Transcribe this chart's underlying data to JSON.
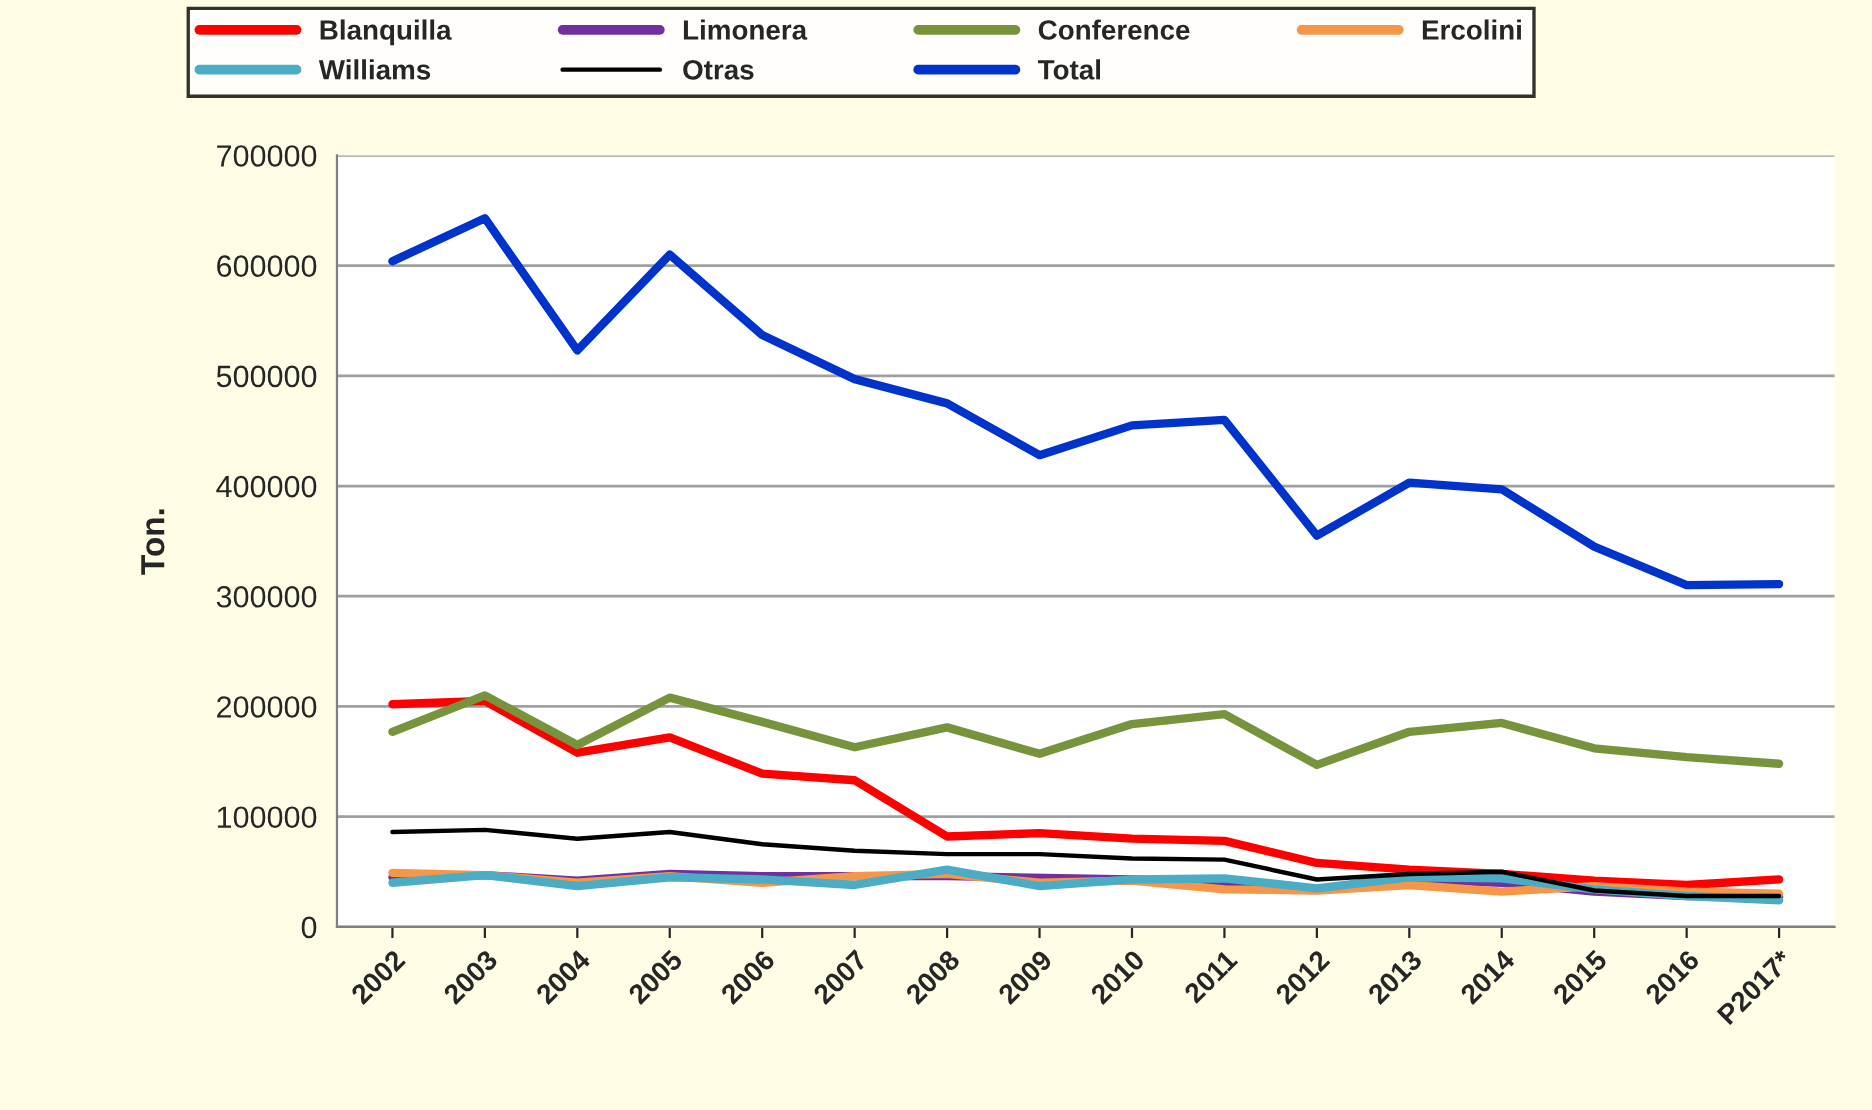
{
  "chart_data": {
    "type": "line",
    "ylabel": "Ton.",
    "categories": [
      "2002",
      "2003",
      "2004",
      "2005",
      "2006",
      "2007",
      "2008",
      "2009",
      "2010",
      "2011",
      "2012",
      "2013",
      "2014",
      "2015",
      "2016",
      "P2017*"
    ],
    "ylim": [
      0,
      700000
    ],
    "yticks": [
      0,
      100000,
      200000,
      300000,
      400000,
      500000,
      600000,
      700000
    ],
    "grid": "y",
    "legend": "top",
    "marker": "none",
    "line_style": "solid",
    "series": [
      {
        "name": "Blanquilla",
        "color": "#ff0000",
        "values": [
          202000,
          205000,
          158000,
          172000,
          139000,
          133000,
          82000,
          85000,
          80000,
          78000,
          58000,
          52000,
          48000,
          42000,
          38000,
          43000
        ]
      },
      {
        "name": "Limonera",
        "color": "#7030a0",
        "values": [
          45000,
          47000,
          42000,
          48000,
          46000,
          46000,
          46000,
          null,
          43000,
          40000,
          34000,
          43000,
          40000,
          32000,
          28000,
          27000
        ]
      },
      {
        "name": "Conference",
        "color": "#77933c",
        "values": [
          177000,
          210000,
          165000,
          208000,
          186000,
          163000,
          181000,
          157000,
          184000,
          193000,
          147000,
          177000,
          185000,
          162000,
          154000,
          148000
        ]
      },
      {
        "name": "Ercolini",
        "color": "#f79646",
        "values": [
          49000,
          47000,
          40000,
          46000,
          40000,
          46000,
          48000,
          40000,
          42000,
          34000,
          33000,
          38000,
          32000,
          37000,
          32000,
          30000
        ]
      },
      {
        "name": "Williams",
        "color": "#4bacc6",
        "values": [
          40000,
          47000,
          37000,
          45000,
          43000,
          38000,
          52000,
          37000,
          43000,
          44000,
          35000,
          45000,
          44000,
          34000,
          28000,
          24000
        ]
      },
      {
        "name": "Otras",
        "color": "#000000",
        "values": [
          86000,
          88000,
          80000,
          86000,
          75000,
          69000,
          66000,
          66000,
          62000,
          61000,
          43000,
          48000,
          50000,
          33000,
          28000,
          28000
        ]
      },
      {
        "name": "Total",
        "color": "#0033cc",
        "values": [
          604000,
          643000,
          523000,
          610000,
          537000,
          497000,
          475000,
          428000,
          455000,
          460000,
          355000,
          403000,
          397000,
          345000,
          310000,
          311000
        ]
      }
    ]
  }
}
